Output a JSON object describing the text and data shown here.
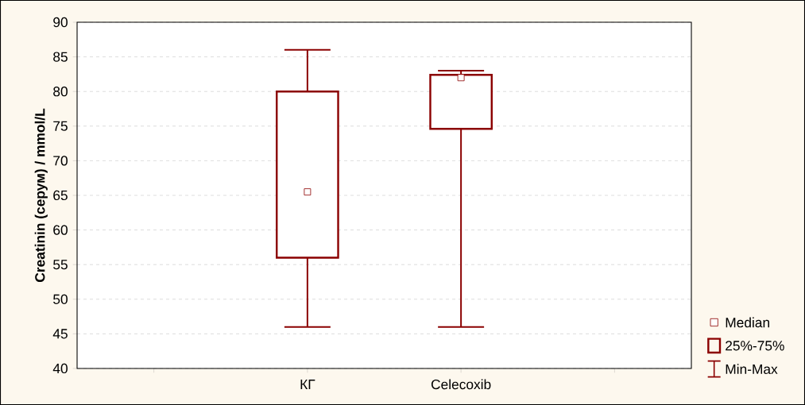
{
  "chart_data": {
    "type": "box",
    "ylabel": "Creatinin (серум) / mmol/L",
    "categories": [
      null,
      "КГ",
      "Celecoxib",
      null
    ],
    "boxes": [
      null,
      {
        "low": 46,
        "q1": 56,
        "median": 65.5,
        "q3": 80,
        "high": 86
      },
      {
        "low": 46,
        "q1": 74.6,
        "median": 82,
        "q3": 82.4,
        "high": 83
      },
      null
    ],
    "color": "#8b0000",
    "ylim": [
      40,
      90
    ],
    "yticks": [
      40,
      45,
      50,
      55,
      60,
      65,
      70,
      75,
      80,
      85,
      90
    ],
    "grid": "y",
    "annotations": [
      "Median",
      "25%-75%",
      "Min-Max"
    ]
  }
}
